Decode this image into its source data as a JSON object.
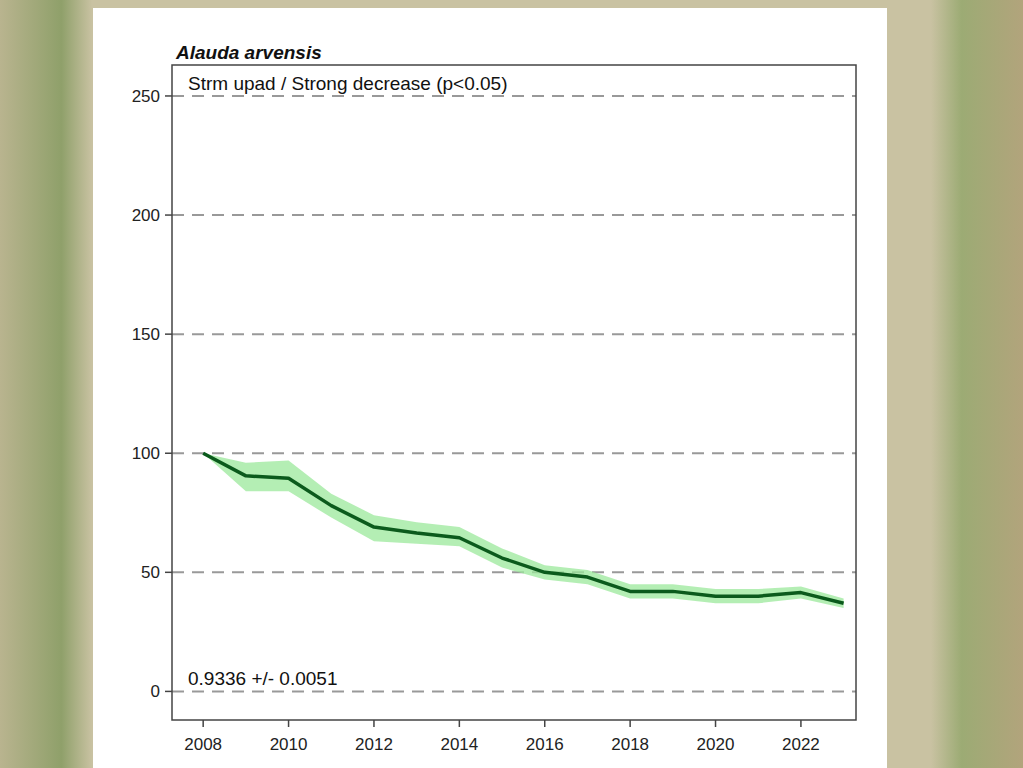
{
  "chart_data": {
    "type": "line",
    "title": "Alauda arvensis",
    "subtitle": "Strm upad / Strong decrease (p<0.05)",
    "annotations": [
      "0.9336 +/- 0.0051"
    ],
    "x": [
      2008,
      2009,
      2010,
      2011,
      2012,
      2013,
      2014,
      2015,
      2016,
      2017,
      2018,
      2019,
      2020,
      2021,
      2022,
      2023
    ],
    "series": [
      {
        "name": "Alauda arvensis",
        "color": "#0b5a1c",
        "values": [
          100,
          90.5,
          89.5,
          78,
          69,
          66.5,
          64.5,
          56,
          50,
          48,
          42,
          42,
          40,
          40,
          41.5,
          37
        ],
        "lower": [
          100,
          84,
          84,
          73,
          63,
          62,
          61,
          52,
          47,
          45,
          39,
          39,
          37,
          37,
          39,
          35
        ],
        "upper": [
          100,
          96,
          97,
          83,
          74,
          71,
          69,
          60,
          53,
          51,
          45,
          45,
          43,
          43,
          44,
          39
        ]
      }
    ],
    "xlim": [
      2007.27,
      2023.29
    ],
    "xticks": [
      2008,
      2010,
      2012,
      2014,
      2016,
      2018,
      2020,
      2022
    ],
    "ylim": [
      -12,
      263
    ],
    "yticks": [
      0,
      50,
      100,
      150,
      200,
      250
    ],
    "grid": true
  }
}
